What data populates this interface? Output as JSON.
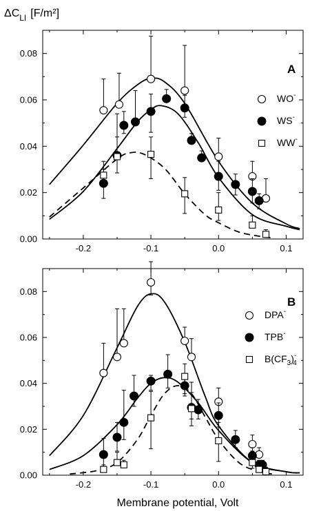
{
  "figure": {
    "ylabel_main": "ΔC",
    "ylabel_sub": "LI",
    "ylabel_unit": "[F/m²]",
    "xlabel": "Membrane potential, Volt"
  },
  "chart_data": [
    {
      "type": "scatter",
      "panel_label": "A",
      "xlim": [
        -0.26,
        0.125
      ],
      "ylim": [
        0,
        0.09
      ],
      "xticks": [
        -0.2,
        -0.1,
        0.0,
        0.1
      ],
      "xtick_labels": [
        "-0.2",
        "-0.1",
        "0.0",
        "0.1"
      ],
      "yticks": [
        0,
        0.02,
        0.04,
        0.06,
        0.08
      ],
      "ytick_labels": [
        "0.00",
        "0.02",
        "0.04",
        "0.06",
        "0.08"
      ],
      "grid": false,
      "legend_position": "top-right",
      "series": [
        {
          "name": "WO",
          "superscript": "-",
          "marker": "open-circle",
          "line": "solid",
          "x": [
            -0.17,
            -0.147,
            -0.1,
            -0.05,
            0.0,
            0.05,
            0.07
          ],
          "y": [
            0.0555,
            0.058,
            0.069,
            0.064,
            0.0355,
            0.027,
            0.0175
          ],
          "err_up": [
            0.0135,
            0.0135,
            0.0185,
            0.0195,
            0.008,
            0.0065,
            0.0085
          ],
          "err_down": [
            0,
            0,
            0,
            0,
            0,
            0,
            0
          ],
          "fit_x": [
            -0.25,
            -0.2,
            -0.15,
            -0.12,
            -0.1,
            -0.08,
            -0.05,
            0.0,
            0.05,
            0.1,
            0.12
          ],
          "fit_y": [
            0.0235,
            0.0405,
            0.0585,
            0.0665,
            0.0693,
            0.0678,
            0.0585,
            0.0335,
            0.0155,
            0.0065,
            0.0045
          ]
        },
        {
          "name": "WS",
          "superscript": "-",
          "marker": "filled-circle",
          "line": "solid",
          "x": [
            -0.17,
            -0.15,
            -0.14,
            -0.123,
            -0.1,
            -0.077,
            -0.05,
            -0.04,
            -0.025,
            0.0,
            0.025,
            0.05,
            0.06
          ],
          "y": [
            0.024,
            0.036,
            0.049,
            0.0505,
            0.055,
            0.0605,
            0.0565,
            0.0425,
            0.035,
            0.027,
            0.0235,
            0.0205,
            0.0165
          ],
          "err_up": [
            0.006,
            0.008,
            0.006,
            0.0135,
            0.0075,
            0.004,
            0.0055,
            0.003,
            0.003,
            0.0065,
            0.0045,
            0.0055,
            0.003
          ],
          "err_down": [
            0.0065,
            0.0075,
            0.0035,
            0,
            0.009,
            0,
            0.004,
            0,
            0,
            0.006,
            0.0045,
            0.005,
            0.0035
          ],
          "fit_x": [
            -0.25,
            -0.2,
            -0.15,
            -0.12,
            -0.1,
            -0.085,
            -0.06,
            -0.03,
            0.0,
            0.05,
            0.1,
            0.12
          ],
          "fit_y": [
            0.0085,
            0.0205,
            0.039,
            0.0505,
            0.0558,
            0.0575,
            0.054,
            0.0415,
            0.0265,
            0.0105,
            0.0055,
            0.004
          ]
        },
        {
          "name": "WW",
          "superscript": "-",
          "marker": "open-square",
          "line": "dashed",
          "x": [
            -0.17,
            -0.15,
            -0.1,
            -0.05,
            0.0,
            0.05,
            0.07
          ],
          "y": [
            0.0275,
            0.0355,
            0.0365,
            0.0195,
            0.0125,
            0.006,
            0.002
          ],
          "err_up": [
            0.006,
            0.0185,
            0.0075,
            0.007,
            0.0075,
            0.004,
            0.002
          ],
          "err_down": [
            0,
            0,
            0.0105,
            0.0085,
            0.0045,
            0,
            0
          ],
          "fit_x": [
            -0.25,
            -0.2,
            -0.15,
            -0.13,
            -0.11,
            -0.08,
            -0.05,
            -0.02,
            0.0,
            0.03,
            0.06,
            0.08
          ],
          "fit_y": [
            0.0095,
            0.022,
            0.0345,
            0.0372,
            0.0365,
            0.0305,
            0.0195,
            0.0105,
            0.007,
            0.003,
            0.0012,
            0.0005
          ]
        }
      ]
    },
    {
      "type": "scatter",
      "panel_label": "B",
      "xlim": [
        -0.26,
        0.125
      ],
      "ylim": [
        0,
        0.09
      ],
      "xticks": [
        -0.2,
        -0.1,
        0.0,
        0.1
      ],
      "xtick_labels": [
        "-0.2",
        "-0.1",
        "0.0",
        "0.1"
      ],
      "yticks": [
        0,
        0.02,
        0.04,
        0.06,
        0.08
      ],
      "ytick_labels": [
        "0.00",
        "0.02",
        "0.04",
        "0.06",
        "0.08"
      ],
      "grid": false,
      "legend_position": "right",
      "series": [
        {
          "name": "DPA",
          "superscript": "-",
          "subscript": "",
          "marker": "open-circle",
          "line": "solid",
          "x": [
            -0.17,
            -0.15,
            -0.14,
            -0.1,
            -0.05,
            -0.04,
            0.0,
            0.05,
            0.06
          ],
          "y": [
            0.0445,
            0.0515,
            0.0575,
            0.084,
            0.0585,
            0.0515,
            0.032,
            0.0135,
            0.009
          ],
          "err_up": [
            0.013,
            0.021,
            0.015,
            0.009,
            0.006,
            0.008,
            0.006,
            0.004,
            0.003
          ],
          "err_down": [
            0,
            0,
            0,
            0.0055,
            0,
            0,
            0,
            0,
            0
          ],
          "fit_x": [
            -0.25,
            -0.2,
            -0.15,
            -0.12,
            -0.1,
            -0.08,
            -0.05,
            -0.02,
            0.0,
            0.05,
            0.1,
            0.12
          ],
          "fit_y": [
            0.0085,
            0.026,
            0.0555,
            0.0735,
            0.079,
            0.0755,
            0.058,
            0.0345,
            0.0215,
            0.0055,
            0.0015,
            0.001
          ]
        },
        {
          "name": "TPB",
          "superscript": "-",
          "subscript": "",
          "marker": "filled-circle",
          "line": "solid",
          "x": [
            -0.17,
            -0.15,
            -0.14,
            -0.125,
            -0.1,
            -0.075,
            -0.05,
            -0.04,
            -0.03,
            0.0,
            0.025,
            0.05,
            0.06,
            0.065
          ],
          "y": [
            0.009,
            0.0165,
            0.023,
            0.0345,
            0.041,
            0.044,
            0.039,
            0.0295,
            0.0285,
            0.026,
            0.0155,
            0.0085,
            0.0045,
            0.0045
          ],
          "err_up": [
            0.007,
            0.0065,
            0.014,
            0.009,
            0.0025,
            0.0085,
            0.0045,
            0.0065,
            0.0045,
            0.0055,
            0.004,
            0.0035,
            0.002,
            0.002
          ],
          "err_down": [
            0.006,
            0.006,
            0.0075,
            0.0045,
            0.004,
            0.006,
            0.0045,
            0.005,
            0.004,
            0.005,
            0.0035,
            0.0035,
            0.002,
            0.002
          ],
          "fit_x": [
            -0.25,
            -0.2,
            -0.15,
            -0.12,
            -0.1,
            -0.08,
            -0.06,
            -0.03,
            0.0,
            0.05,
            0.1,
            0.12
          ],
          "fit_y": [
            0.0025,
            0.0085,
            0.022,
            0.0335,
            0.04,
            0.0425,
            0.0405,
            0.0315,
            0.0195,
            0.0055,
            0.0015,
            0.001
          ]
        },
        {
          "name": "B(CF",
          "subscript": "3",
          "name_suffix": ")",
          "subscript2": "4",
          "superscript": "-",
          "marker": "open-square",
          "line": "dashed",
          "x": [
            -0.17,
            -0.15,
            -0.14,
            -0.1,
            -0.05,
            -0.04,
            0.0,
            0.05,
            0.06,
            0.07
          ],
          "y": [
            0.0025,
            0.0055,
            0.0045,
            0.025,
            0.043,
            0.029,
            0.015,
            0.0055,
            0.0025,
            0.0015
          ],
          "err_up": [
            0.002,
            0.0045,
            0.002,
            0.0115,
            0.0055,
            0.0115,
            0.008,
            0.005,
            0.002,
            0.002
          ],
          "err_down": [
            0,
            0,
            0,
            0.0135,
            0.0075,
            0.0075,
            0.009,
            0.0025,
            0,
            0
          ],
          "fit_x": [
            -0.22,
            -0.18,
            -0.15,
            -0.12,
            -0.1,
            -0.08,
            -0.06,
            -0.04,
            -0.02,
            0.0,
            0.03,
            0.06,
            0.08
          ],
          "fit_y": [
            0.0005,
            0.002,
            0.0055,
            0.0155,
            0.026,
            0.0355,
            0.039,
            0.0355,
            0.0255,
            0.0155,
            0.0055,
            0.0015,
            0.0005
          ]
        }
      ]
    }
  ]
}
